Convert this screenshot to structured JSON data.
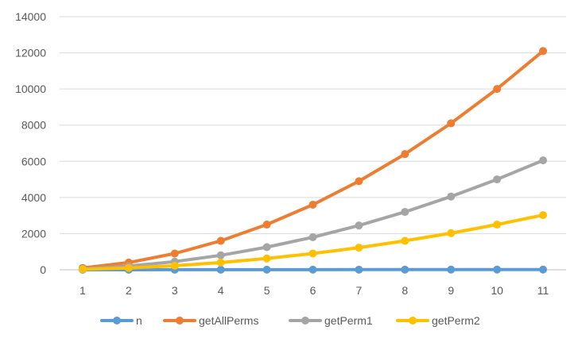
{
  "chart_data": {
    "type": "line",
    "title": "",
    "xlabel": "",
    "ylabel": "",
    "x": [
      1,
      2,
      3,
      4,
      5,
      6,
      7,
      8,
      9,
      10,
      11
    ],
    "ylim": [
      0,
      14000
    ],
    "yticks": [
      0,
      2000,
      4000,
      6000,
      8000,
      10000,
      12000,
      14000
    ],
    "grid": true,
    "legend_position": "bottom",
    "series": [
      {
        "name": "n",
        "color": "#5b9bd5",
        "values": [
          1,
          2,
          3,
          4,
          5,
          6,
          7,
          8,
          9,
          10,
          11
        ]
      },
      {
        "name": "getAllPerms",
        "color": "#ed7d31",
        "values": [
          100,
          400,
          900,
          1600,
          2500,
          3600,
          4900,
          6400,
          8100,
          10000,
          12100
        ]
      },
      {
        "name": "getPerm1",
        "color": "#a5a5a5",
        "values": [
          50,
          200,
          450,
          800,
          1250,
          1800,
          2450,
          3200,
          4050,
          5000,
          6050
        ]
      },
      {
        "name": "getPerm2",
        "color": "#ffc000",
        "values": [
          25,
          100,
          225,
          400,
          625,
          900,
          1225,
          1600,
          2025,
          2500,
          3025
        ]
      }
    ]
  }
}
